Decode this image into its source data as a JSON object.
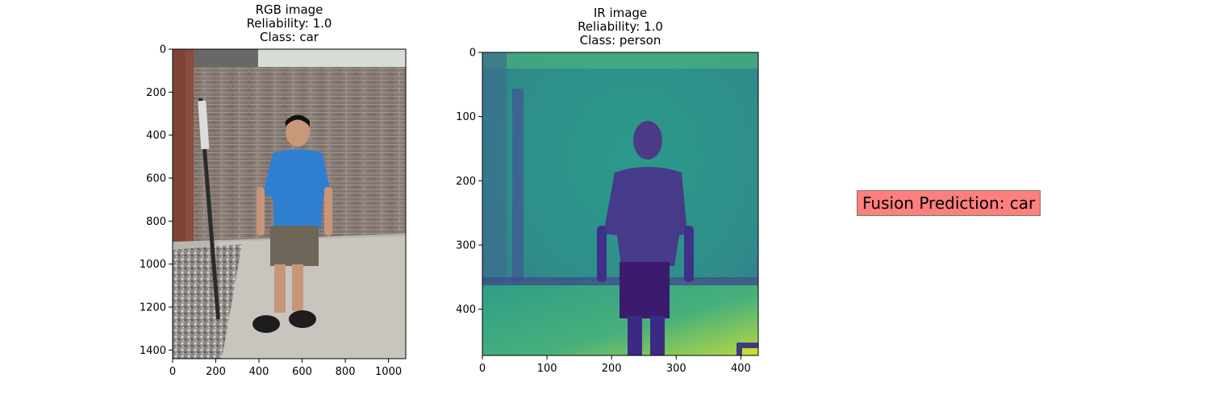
{
  "panels": {
    "rgb": {
      "title_lines": [
        "RGB image",
        "Reliability: 1.0",
        "Class: car"
      ],
      "x_ticks": [
        0,
        200,
        400,
        600,
        800,
        1000
      ],
      "y_ticks": [
        0,
        200,
        400,
        600,
        800,
        1000,
        1200,
        1400
      ],
      "x_range": [
        0,
        1080
      ],
      "y_range": [
        0,
        1440
      ]
    },
    "ir": {
      "title_lines": [
        "IR image",
        "Reliability: 1.0",
        "Class: person"
      ],
      "x_ticks": [
        0,
        100,
        200,
        300,
        400
      ],
      "y_ticks": [
        0,
        100,
        200,
        300,
        400
      ],
      "x_range": [
        0,
        427
      ],
      "y_range": [
        0,
        472
      ]
    }
  },
  "fusion": {
    "label": "Fusion Prediction: car",
    "box_color": "#ff7f7f"
  }
}
